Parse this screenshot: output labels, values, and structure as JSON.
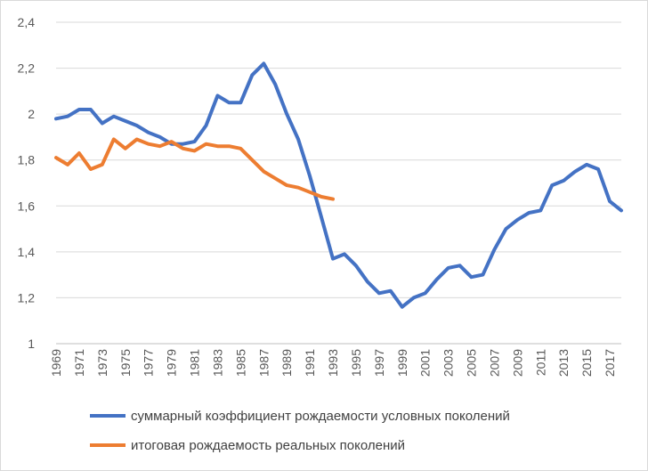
{
  "chart_data": {
    "type": "line",
    "title": "",
    "xlabel": "",
    "ylabel": "",
    "ylim": [
      1,
      2.4
    ],
    "yticks": [
      "1",
      "1,2",
      "1,4",
      "1,6",
      "1,8",
      "2",
      "2,2",
      "2,4"
    ],
    "ytick_values": [
      1,
      1.2,
      1.4,
      1.6,
      1.8,
      2,
      2.2,
      2.4
    ],
    "x_start": 1969,
    "x_end": 2018,
    "xticks": [
      "1969",
      "1971",
      "1973",
      "1975",
      "1977",
      "1979",
      "1981",
      "1983",
      "1985",
      "1987",
      "1989",
      "1991",
      "1993",
      "1995",
      "1997",
      "1999",
      "2001",
      "2003",
      "2005",
      "2007",
      "2009",
      "2011",
      "2013",
      "2015",
      "2017"
    ],
    "grid": true,
    "legend_position": "bottom",
    "series": [
      {
        "name": "суммарный коэффициент рождаемости условных поколений",
        "color": "#4472C4",
        "x": [
          1969,
          1970,
          1971,
          1972,
          1973,
          1974,
          1975,
          1976,
          1977,
          1978,
          1979,
          1980,
          1981,
          1982,
          1983,
          1984,
          1985,
          1986,
          1987,
          1988,
          1989,
          1990,
          1991,
          1992,
          1993,
          1994,
          1995,
          1996,
          1997,
          1998,
          1999,
          2000,
          2001,
          2002,
          2003,
          2004,
          2005,
          2006,
          2007,
          2008,
          2009,
          2010,
          2011,
          2012,
          2013,
          2014,
          2015,
          2016,
          2017,
          2018
        ],
        "values": [
          1.98,
          1.99,
          2.02,
          2.02,
          1.96,
          1.99,
          1.97,
          1.95,
          1.92,
          1.9,
          1.87,
          1.87,
          1.88,
          1.95,
          2.08,
          2.05,
          2.05,
          2.17,
          2.22,
          2.13,
          2.0,
          1.89,
          1.73,
          1.55,
          1.37,
          1.39,
          1.34,
          1.27,
          1.22,
          1.23,
          1.16,
          1.2,
          1.22,
          1.28,
          1.33,
          1.34,
          1.29,
          1.3,
          1.41,
          1.5,
          1.54,
          1.57,
          1.58,
          1.69,
          1.71,
          1.75,
          1.78,
          1.76,
          1.62,
          1.58
        ]
      },
      {
        "name": "итоговая рождаемость реальных поколений",
        "color": "#ED7D31",
        "x": [
          1969,
          1970,
          1971,
          1972,
          1973,
          1974,
          1975,
          1976,
          1977,
          1978,
          1979,
          1980,
          1981,
          1982,
          1983,
          1984,
          1985,
          1986,
          1987,
          1988,
          1989,
          1990,
          1991,
          1992,
          1993
        ],
        "values": [
          1.81,
          1.78,
          1.83,
          1.76,
          1.78,
          1.89,
          1.85,
          1.89,
          1.87,
          1.86,
          1.88,
          1.85,
          1.84,
          1.87,
          1.86,
          1.86,
          1.85,
          1.8,
          1.75,
          1.72,
          1.69,
          1.68,
          1.66,
          1.64,
          1.63
        ]
      }
    ]
  }
}
